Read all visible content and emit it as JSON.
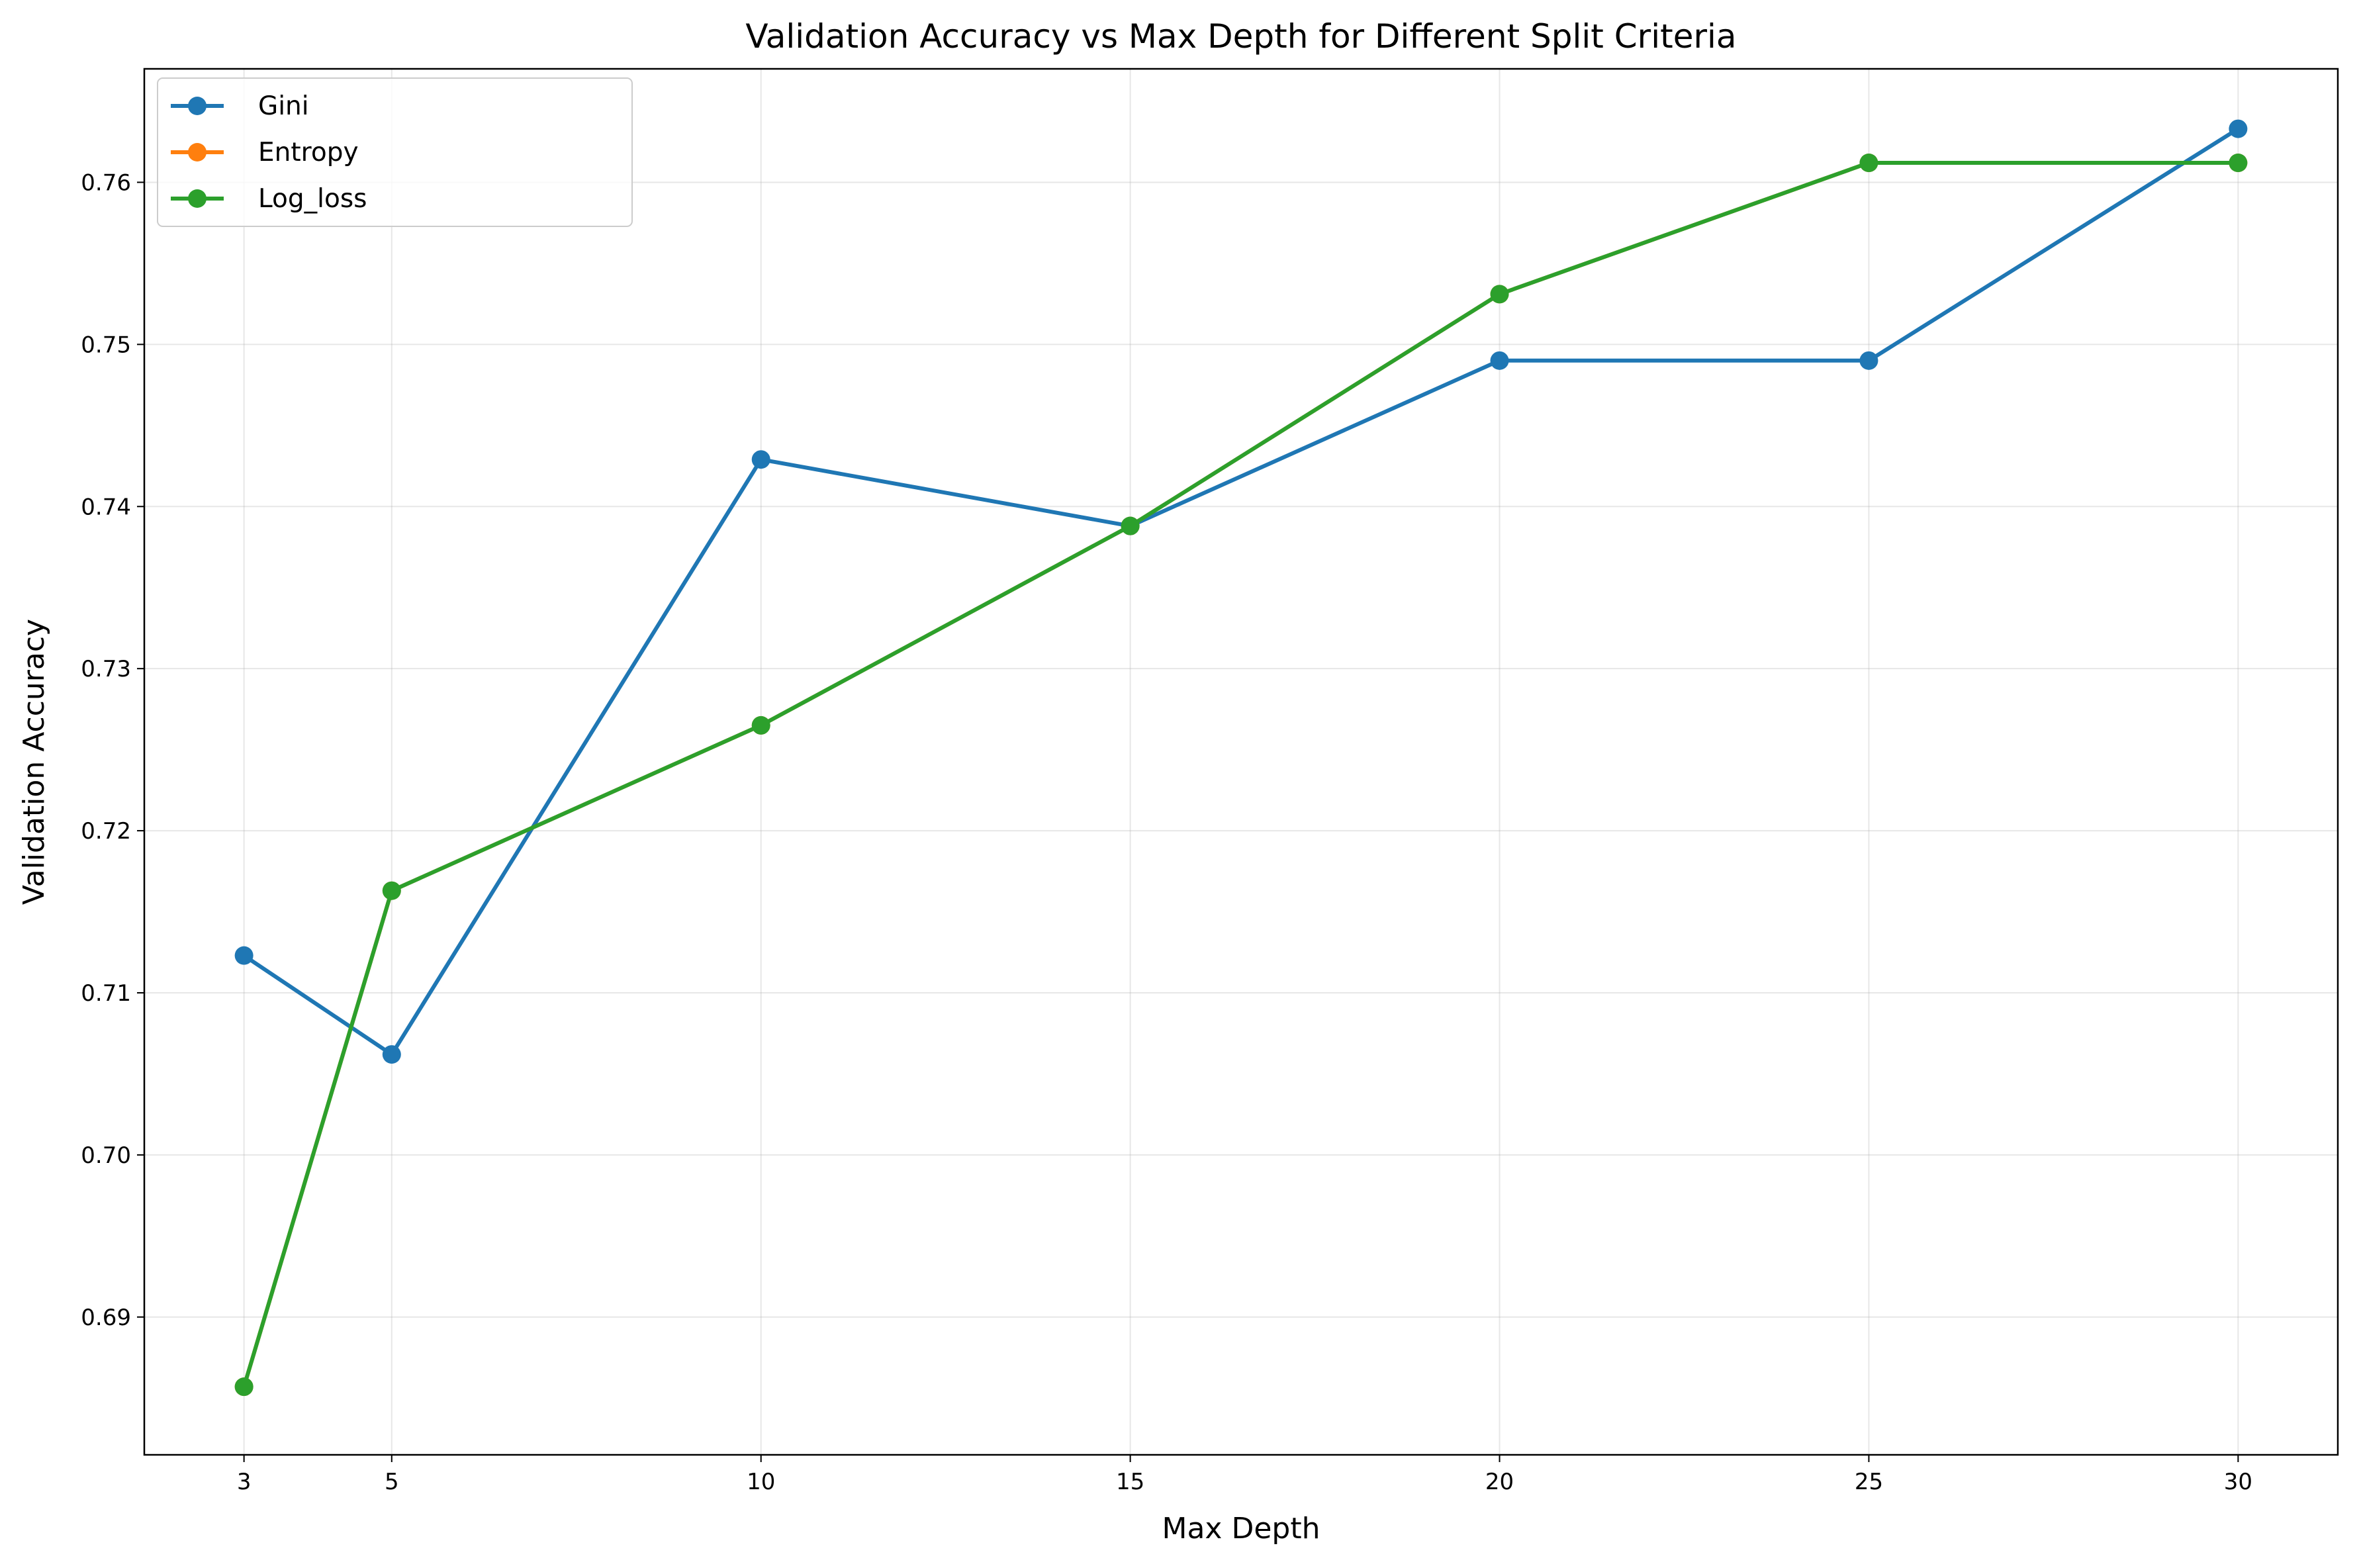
{
  "chart_data": {
    "type": "line",
    "title": "Validation Accuracy vs Max Depth for Different Split Criteria",
    "xlabel": "Max Depth",
    "ylabel": "Validation Accuracy",
    "x": [
      3,
      5,
      10,
      15,
      20,
      25,
      30
    ],
    "xlim": [
      1.65,
      31.35
    ],
    "ylim": [
      0.6815,
      0.767
    ],
    "xticks": [
      3,
      5,
      10,
      15,
      20,
      25,
      30
    ],
    "yticks": [
      0.69,
      0.7,
      0.71,
      0.72,
      0.73,
      0.74,
      0.75,
      0.76
    ],
    "ytick_labels": [
      "0.69",
      "0.70",
      "0.71",
      "0.72",
      "0.73",
      "0.74",
      "0.75",
      "0.76"
    ],
    "grid": true,
    "legend_position": "upper-left",
    "series": [
      {
        "name": "Gini",
        "color": "#1f77b4",
        "values": [
          0.7123,
          0.7062,
          0.7429,
          0.7388,
          0.749,
          0.749,
          0.7633
        ]
      },
      {
        "name": "Entropy",
        "color": "#ff7f0e",
        "values": [
          0.6857,
          0.7163,
          0.7265,
          0.7388,
          0.7531,
          0.7612,
          0.7612
        ]
      },
      {
        "name": "Log_loss",
        "color": "#2ca02c",
        "values": [
          0.6857,
          0.7163,
          0.7265,
          0.7388,
          0.7531,
          0.7612,
          0.7612
        ]
      }
    ]
  }
}
